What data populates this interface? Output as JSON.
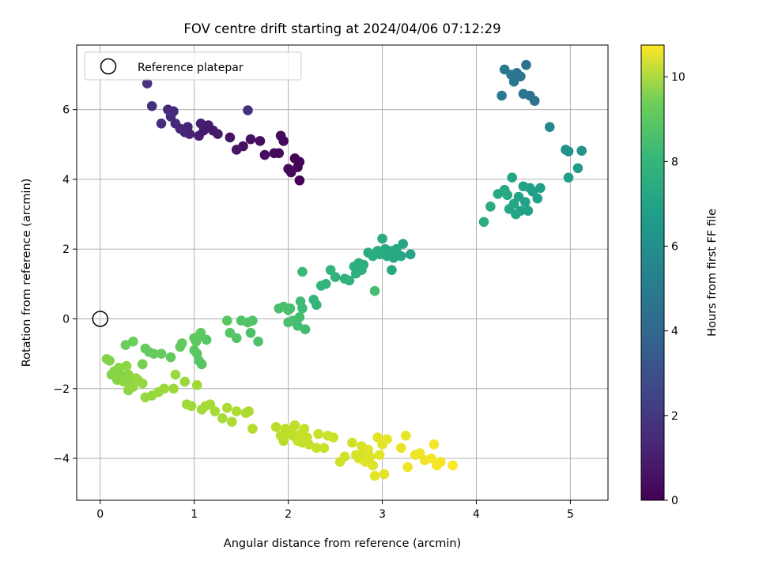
{
  "chart_data": {
    "type": "scatter",
    "title": "FOV centre drift starting at 2024/04/06 07:12:29",
    "xlabel": "Angular distance from reference (arcmin)",
    "ylabel": "Rotation from reference (arcmin)",
    "xlim": [
      -0.25,
      5.4
    ],
    "ylim": [
      -5.2,
      7.85
    ],
    "xticks": [
      0,
      1,
      2,
      3,
      4,
      5
    ],
    "yticks": [
      -4,
      -2,
      0,
      2,
      4,
      6
    ],
    "grid": true,
    "legend": {
      "position": "top-left",
      "label": "Reference platepar",
      "marker": "open-circle"
    },
    "reference_point": {
      "x": 0,
      "y": 0
    },
    "colorbar": {
      "label": "Hours from first FF file",
      "colormap": "viridis",
      "range": [
        0,
        10.75
      ],
      "ticks": [
        0,
        2,
        4,
        6,
        8,
        10
      ]
    },
    "points": [
      {
        "x": 0.5,
        "y": 6.75,
        "h": 1.6
      },
      {
        "x": 0.55,
        "y": 6.1,
        "h": 1.5
      },
      {
        "x": 0.65,
        "y": 5.6,
        "h": 1.4
      },
      {
        "x": 0.72,
        "y": 6.0,
        "h": 1.3
      },
      {
        "x": 0.75,
        "y": 5.8,
        "h": 1.3
      },
      {
        "x": 0.78,
        "y": 5.95,
        "h": 1.2
      },
      {
        "x": 0.8,
        "y": 5.6,
        "h": 1.2
      },
      {
        "x": 0.85,
        "y": 5.45,
        "h": 1.1
      },
      {
        "x": 0.9,
        "y": 5.35,
        "h": 1.1
      },
      {
        "x": 0.93,
        "y": 5.5,
        "h": 1.0
      },
      {
        "x": 0.95,
        "y": 5.3,
        "h": 1.0
      },
      {
        "x": 1.05,
        "y": 5.25,
        "h": 0.9
      },
      {
        "x": 1.07,
        "y": 5.6,
        "h": 0.9
      },
      {
        "x": 1.1,
        "y": 5.4,
        "h": 0.8
      },
      {
        "x": 1.15,
        "y": 5.55,
        "h": 0.8
      },
      {
        "x": 1.2,
        "y": 5.4,
        "h": 0.7
      },
      {
        "x": 1.25,
        "y": 5.3,
        "h": 0.7
      },
      {
        "x": 1.38,
        "y": 5.2,
        "h": 0.6
      },
      {
        "x": 1.45,
        "y": 4.85,
        "h": 0.6
      },
      {
        "x": 1.52,
        "y": 4.95,
        "h": 0.5
      },
      {
        "x": 1.57,
        "y": 5.98,
        "h": 1.5
      },
      {
        "x": 1.6,
        "y": 5.15,
        "h": 0.5
      },
      {
        "x": 1.7,
        "y": 5.1,
        "h": 0.4
      },
      {
        "x": 1.75,
        "y": 4.7,
        "h": 0.4
      },
      {
        "x": 1.85,
        "y": 4.75,
        "h": 0.3
      },
      {
        "x": 1.9,
        "y": 4.75,
        "h": 0.3
      },
      {
        "x": 1.92,
        "y": 5.25,
        "h": 0.3
      },
      {
        "x": 1.95,
        "y": 5.1,
        "h": 0.2
      },
      {
        "x": 2.0,
        "y": 4.3,
        "h": 0.2
      },
      {
        "x": 2.03,
        "y": 4.2,
        "h": 0.2
      },
      {
        "x": 2.07,
        "y": 4.6,
        "h": 0.1
      },
      {
        "x": 2.1,
        "y": 4.35,
        "h": 0.1
      },
      {
        "x": 2.12,
        "y": 4.5,
        "h": 0.1
      },
      {
        "x": 2.12,
        "y": 3.97,
        "h": 0.0
      },
      {
        "x": 4.27,
        "y": 6.4,
        "h": 4.4
      },
      {
        "x": 4.3,
        "y": 7.15,
        "h": 4.3
      },
      {
        "x": 4.37,
        "y": 7.0,
        "h": 4.3
      },
      {
        "x": 4.4,
        "y": 6.8,
        "h": 4.3
      },
      {
        "x": 4.43,
        "y": 7.05,
        "h": 4.2
      },
      {
        "x": 4.47,
        "y": 6.95,
        "h": 4.2
      },
      {
        "x": 4.5,
        "y": 6.45,
        "h": 4.2
      },
      {
        "x": 4.53,
        "y": 7.28,
        "h": 4.1
      },
      {
        "x": 4.57,
        "y": 6.4,
        "h": 4.1
      },
      {
        "x": 4.62,
        "y": 6.25,
        "h": 4.0
      },
      {
        "x": 4.78,
        "y": 5.5,
        "h": 5.0
      },
      {
        "x": 4.95,
        "y": 4.85,
        "h": 5.5
      },
      {
        "x": 4.98,
        "y": 4.8,
        "h": 5.5
      },
      {
        "x": 5.08,
        "y": 4.32,
        "h": 5.8
      },
      {
        "x": 5.12,
        "y": 4.82,
        "h": 5.6
      },
      {
        "x": 4.98,
        "y": 4.05,
        "h": 6.0
      },
      {
        "x": 4.08,
        "y": 2.78,
        "h": 6.7
      },
      {
        "x": 4.15,
        "y": 3.22,
        "h": 6.6
      },
      {
        "x": 4.23,
        "y": 3.58,
        "h": 6.5
      },
      {
        "x": 4.3,
        "y": 3.7,
        "h": 6.5
      },
      {
        "x": 4.33,
        "y": 3.55,
        "h": 6.4
      },
      {
        "x": 4.35,
        "y": 3.15,
        "h": 6.4
      },
      {
        "x": 4.38,
        "y": 4.05,
        "h": 6.3
      },
      {
        "x": 4.4,
        "y": 3.3,
        "h": 6.3
      },
      {
        "x": 4.42,
        "y": 3.0,
        "h": 6.3
      },
      {
        "x": 4.45,
        "y": 3.5,
        "h": 6.2
      },
      {
        "x": 4.47,
        "y": 3.1,
        "h": 6.2
      },
      {
        "x": 4.5,
        "y": 3.8,
        "h": 6.2
      },
      {
        "x": 4.52,
        "y": 3.35,
        "h": 6.1
      },
      {
        "x": 4.55,
        "y": 3.1,
        "h": 6.1
      },
      {
        "x": 4.57,
        "y": 3.75,
        "h": 6.1
      },
      {
        "x": 4.6,
        "y": 3.65,
        "h": 6.0
      },
      {
        "x": 4.65,
        "y": 3.45,
        "h": 6.0
      },
      {
        "x": 4.68,
        "y": 3.75,
        "h": 6.0
      },
      {
        "x": 2.27,
        "y": 0.55,
        "h": 7.1
      },
      {
        "x": 2.3,
        "y": 0.4,
        "h": 7.1
      },
      {
        "x": 2.35,
        "y": 0.95,
        "h": 7.0
      },
      {
        "x": 2.4,
        "y": 1.0,
        "h": 7.0
      },
      {
        "x": 2.45,
        "y": 1.4,
        "h": 7.0
      },
      {
        "x": 2.5,
        "y": 1.2,
        "h": 6.9
      },
      {
        "x": 2.6,
        "y": 1.15,
        "h": 6.9
      },
      {
        "x": 2.65,
        "y": 1.1,
        "h": 6.9
      },
      {
        "x": 2.7,
        "y": 1.5,
        "h": 6.8
      },
      {
        "x": 2.72,
        "y": 1.3,
        "h": 6.8
      },
      {
        "x": 2.75,
        "y": 1.6,
        "h": 6.8
      },
      {
        "x": 2.78,
        "y": 1.4,
        "h": 6.8
      },
      {
        "x": 2.8,
        "y": 1.55,
        "h": 6.7
      },
      {
        "x": 2.85,
        "y": 1.9,
        "h": 6.7
      },
      {
        "x": 2.9,
        "y": 1.8,
        "h": 6.7
      },
      {
        "x": 2.92,
        "y": 0.8,
        "h": 7.5
      },
      {
        "x": 2.95,
        "y": 1.95,
        "h": 6.6
      },
      {
        "x": 2.97,
        "y": 1.85,
        "h": 6.6
      },
      {
        "x": 3.0,
        "y": 2.3,
        "h": 6.6
      },
      {
        "x": 3.03,
        "y": 2.0,
        "h": 6.5
      },
      {
        "x": 3.05,
        "y": 1.8,
        "h": 6.5
      },
      {
        "x": 3.08,
        "y": 1.95,
        "h": 6.5
      },
      {
        "x": 3.1,
        "y": 1.4,
        "h": 6.5
      },
      {
        "x": 3.12,
        "y": 1.75,
        "h": 6.4
      },
      {
        "x": 3.15,
        "y": 2.0,
        "h": 6.4
      },
      {
        "x": 3.2,
        "y": 1.8,
        "h": 6.4
      },
      {
        "x": 3.22,
        "y": 2.15,
        "h": 6.3
      },
      {
        "x": 3.3,
        "y": 1.85,
        "h": 6.3
      },
      {
        "x": 1.35,
        "y": -0.05,
        "h": 7.9
      },
      {
        "x": 1.38,
        "y": -0.4,
        "h": 7.9
      },
      {
        "x": 1.45,
        "y": -0.55,
        "h": 7.8
      },
      {
        "x": 1.5,
        "y": -0.05,
        "h": 7.8
      },
      {
        "x": 1.57,
        "y": -0.1,
        "h": 7.8
      },
      {
        "x": 1.62,
        "y": -0.05,
        "h": 7.8
      },
      {
        "x": 1.6,
        "y": -0.4,
        "h": 7.7
      },
      {
        "x": 1.68,
        "y": -0.65,
        "h": 7.7
      },
      {
        "x": 1.9,
        "y": 0.3,
        "h": 7.6
      },
      {
        "x": 1.95,
        "y": 0.35,
        "h": 7.6
      },
      {
        "x": 2.0,
        "y": 0.25,
        "h": 7.6
      },
      {
        "x": 2.0,
        "y": -0.1,
        "h": 7.6
      },
      {
        "x": 2.02,
        "y": 0.3,
        "h": 7.5
      },
      {
        "x": 2.05,
        "y": -0.05,
        "h": 7.5
      },
      {
        "x": 2.1,
        "y": -0.2,
        "h": 7.5
      },
      {
        "x": 2.12,
        "y": 0.05,
        "h": 7.5
      },
      {
        "x": 2.13,
        "y": 0.5,
        "h": 7.4
      },
      {
        "x": 2.15,
        "y": 0.3,
        "h": 7.4
      },
      {
        "x": 2.15,
        "y": 1.35,
        "h": 7.3
      },
      {
        "x": 2.18,
        "y": -0.3,
        "h": 7.4
      },
      {
        "x": 0.27,
        "y": -0.75,
        "h": 8.3
      },
      {
        "x": 0.35,
        "y": -0.65,
        "h": 8.3
      },
      {
        "x": 0.45,
        "y": -1.3,
        "h": 8.5
      },
      {
        "x": 0.48,
        "y": -0.85,
        "h": 8.2
      },
      {
        "x": 0.52,
        "y": -0.95,
        "h": 8.2
      },
      {
        "x": 0.57,
        "y": -1.0,
        "h": 8.2
      },
      {
        "x": 0.65,
        "y": -1.0,
        "h": 8.2
      },
      {
        "x": 0.75,
        "y": -1.1,
        "h": 8.1
      },
      {
        "x": 0.85,
        "y": -0.8,
        "h": 8.1
      },
      {
        "x": 0.87,
        "y": -0.7,
        "h": 8.1
      },
      {
        "x": 1.0,
        "y": -0.55,
        "h": 8.0
      },
      {
        "x": 1.02,
        "y": -0.65,
        "h": 8.0
      },
      {
        "x": 1.05,
        "y": -0.5,
        "h": 8.0
      },
      {
        "x": 1.07,
        "y": -0.4,
        "h": 8.0
      },
      {
        "x": 1.0,
        "y": -0.9,
        "h": 8.0
      },
      {
        "x": 1.03,
        "y": -1.0,
        "h": 8.0
      },
      {
        "x": 1.05,
        "y": -1.2,
        "h": 7.9
      },
      {
        "x": 1.08,
        "y": -1.3,
        "h": 7.9
      },
      {
        "x": 1.13,
        "y": -0.6,
        "h": 7.9
      },
      {
        "x": 0.07,
        "y": -1.15,
        "h": 8.7
      },
      {
        "x": 0.1,
        "y": -1.2,
        "h": 8.7
      },
      {
        "x": 0.12,
        "y": -1.6,
        "h": 8.7
      },
      {
        "x": 0.15,
        "y": -1.5,
        "h": 8.8
      },
      {
        "x": 0.18,
        "y": -1.75,
        "h": 8.8
      },
      {
        "x": 0.2,
        "y": -1.4,
        "h": 8.8
      },
      {
        "x": 0.22,
        "y": -1.6,
        "h": 8.8
      },
      {
        "x": 0.25,
        "y": -1.8,
        "h": 8.9
      },
      {
        "x": 0.28,
        "y": -1.35,
        "h": 8.9
      },
      {
        "x": 0.3,
        "y": -1.6,
        "h": 8.9
      },
      {
        "x": 0.3,
        "y": -2.05,
        "h": 8.9
      },
      {
        "x": 0.33,
        "y": -1.85,
        "h": 8.9
      },
      {
        "x": 0.35,
        "y": -1.95,
        "h": 9.0
      },
      {
        "x": 0.38,
        "y": -1.7,
        "h": 9.0
      },
      {
        "x": 0.4,
        "y": -1.75,
        "h": 9.0
      },
      {
        "x": 0.45,
        "y": -1.85,
        "h": 9.0
      },
      {
        "x": 0.48,
        "y": -2.25,
        "h": 9.0
      },
      {
        "x": 0.55,
        "y": -2.2,
        "h": 9.0
      },
      {
        "x": 0.62,
        "y": -2.1,
        "h": 9.1
      },
      {
        "x": 0.68,
        "y": -2.0,
        "h": 9.1
      },
      {
        "x": 0.78,
        "y": -2.0,
        "h": 9.1
      },
      {
        "x": 0.8,
        "y": -1.6,
        "h": 9.1
      },
      {
        "x": 0.9,
        "y": -1.8,
        "h": 9.1
      },
      {
        "x": 0.92,
        "y": -2.45,
        "h": 9.2
      },
      {
        "x": 0.97,
        "y": -2.5,
        "h": 9.2
      },
      {
        "x": 1.03,
        "y": -1.9,
        "h": 9.2
      },
      {
        "x": 1.08,
        "y": -2.6,
        "h": 9.2
      },
      {
        "x": 1.12,
        "y": -2.5,
        "h": 9.3
      },
      {
        "x": 1.17,
        "y": -2.45,
        "h": 9.3
      },
      {
        "x": 1.22,
        "y": -2.65,
        "h": 9.3
      },
      {
        "x": 1.3,
        "y": -2.85,
        "h": 9.3
      },
      {
        "x": 1.35,
        "y": -2.55,
        "h": 9.4
      },
      {
        "x": 1.4,
        "y": -2.95,
        "h": 9.4
      },
      {
        "x": 1.45,
        "y": -2.65,
        "h": 9.4
      },
      {
        "x": 1.55,
        "y": -2.7,
        "h": 9.4
      },
      {
        "x": 1.58,
        "y": -2.65,
        "h": 9.4
      },
      {
        "x": 1.62,
        "y": -3.15,
        "h": 9.5
      },
      {
        "x": 1.87,
        "y": -3.1,
        "h": 9.6
      },
      {
        "x": 1.92,
        "y": -3.35,
        "h": 9.6
      },
      {
        "x": 1.95,
        "y": -3.5,
        "h": 9.6
      },
      {
        "x": 1.97,
        "y": -3.15,
        "h": 9.7
      },
      {
        "x": 2.0,
        "y": -3.3,
        "h": 9.7
      },
      {
        "x": 2.03,
        "y": -3.2,
        "h": 9.7
      },
      {
        "x": 2.05,
        "y": -3.35,
        "h": 9.7
      },
      {
        "x": 2.07,
        "y": -3.05,
        "h": 9.7
      },
      {
        "x": 2.1,
        "y": -3.5,
        "h": 9.8
      },
      {
        "x": 2.13,
        "y": -3.3,
        "h": 9.8
      },
      {
        "x": 2.15,
        "y": -3.55,
        "h": 9.8
      },
      {
        "x": 2.17,
        "y": -3.15,
        "h": 9.8
      },
      {
        "x": 2.2,
        "y": -3.4,
        "h": 9.8
      },
      {
        "x": 2.22,
        "y": -3.6,
        "h": 9.8
      },
      {
        "x": 2.3,
        "y": -3.7,
        "h": 9.9
      },
      {
        "x": 2.32,
        "y": -3.3,
        "h": 9.9
      },
      {
        "x": 2.38,
        "y": -3.7,
        "h": 9.9
      },
      {
        "x": 2.42,
        "y": -3.35,
        "h": 9.9
      },
      {
        "x": 2.48,
        "y": -3.4,
        "h": 9.9
      },
      {
        "x": 2.55,
        "y": -4.1,
        "h": 10.0
      },
      {
        "x": 2.6,
        "y": -3.95,
        "h": 10.0
      },
      {
        "x": 2.68,
        "y": -3.55,
        "h": 10.0
      },
      {
        "x": 2.72,
        "y": -3.9,
        "h": 10.1
      },
      {
        "x": 2.75,
        "y": -4.0,
        "h": 10.1
      },
      {
        "x": 2.78,
        "y": -3.65,
        "h": 10.1
      },
      {
        "x": 2.8,
        "y": -3.85,
        "h": 10.1
      },
      {
        "x": 2.82,
        "y": -4.1,
        "h": 10.2
      },
      {
        "x": 2.85,
        "y": -3.75,
        "h": 10.2
      },
      {
        "x": 2.87,
        "y": -3.95,
        "h": 10.2
      },
      {
        "x": 2.9,
        "y": -4.2,
        "h": 10.2
      },
      {
        "x": 2.92,
        "y": -4.5,
        "h": 10.3
      },
      {
        "x": 2.95,
        "y": -3.4,
        "h": 10.3
      },
      {
        "x": 2.97,
        "y": -3.9,
        "h": 10.3
      },
      {
        "x": 3.0,
        "y": -3.6,
        "h": 10.3
      },
      {
        "x": 3.02,
        "y": -4.45,
        "h": 10.3
      },
      {
        "x": 3.05,
        "y": -3.45,
        "h": 10.4
      },
      {
        "x": 3.2,
        "y": -3.7,
        "h": 10.4
      },
      {
        "x": 3.25,
        "y": -3.35,
        "h": 10.4
      },
      {
        "x": 3.27,
        "y": -4.25,
        "h": 10.5
      },
      {
        "x": 3.35,
        "y": -3.9,
        "h": 10.5
      },
      {
        "x": 3.4,
        "y": -3.85,
        "h": 10.5
      },
      {
        "x": 3.45,
        "y": -4.05,
        "h": 10.5
      },
      {
        "x": 3.52,
        "y": -4.0,
        "h": 10.6
      },
      {
        "x": 3.55,
        "y": -3.6,
        "h": 10.6
      },
      {
        "x": 3.58,
        "y": -4.2,
        "h": 10.6
      },
      {
        "x": 3.62,
        "y": -4.1,
        "h": 10.6
      },
      {
        "x": 3.75,
        "y": -4.2,
        "h": 10.7
      }
    ]
  }
}
